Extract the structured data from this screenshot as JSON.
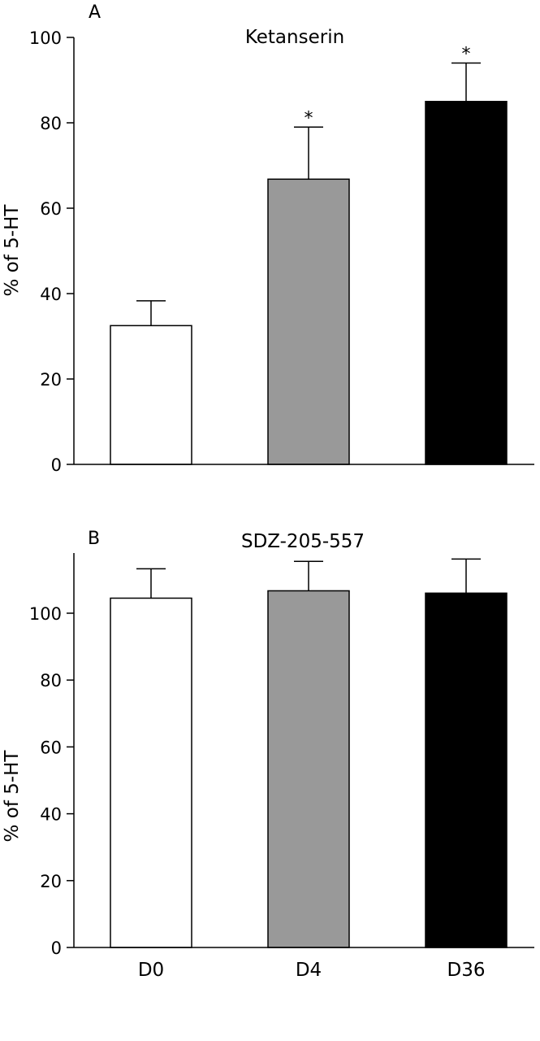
{
  "chart_data": [
    {
      "type": "bar",
      "panel_label": "A",
      "title": "Ketanserin",
      "xlabel": "",
      "ylabel": "% of 5-HT",
      "ylim": [
        0,
        100
      ],
      "yticks": [
        0,
        20,
        40,
        60,
        80,
        100
      ],
      "categories": [
        "D0",
        "D4",
        "D36"
      ],
      "show_category_labels": false,
      "values": [
        32.5,
        66.8,
        85
      ],
      "errors": [
        5.8,
        12.2,
        9
      ],
      "significance": [
        "",
        "*",
        "*"
      ],
      "colors": [
        "#ffffff",
        "#999999",
        "#000000"
      ],
      "grid": false
    },
    {
      "type": "bar",
      "panel_label": "B",
      "title": "SDZ-205-557",
      "xlabel": "",
      "ylabel": "% of 5-HT",
      "ylim": [
        0,
        118
      ],
      "yticks": [
        0,
        20,
        40,
        60,
        80,
        100
      ],
      "categories": [
        "D0",
        "D4",
        "D36"
      ],
      "show_category_labels": true,
      "values": [
        104.5,
        106.7,
        106
      ],
      "errors": [
        8.8,
        8.8,
        10.2
      ],
      "significance": [
        "",
        "",
        ""
      ],
      "colors": [
        "#ffffff",
        "#999999",
        "#000000"
      ],
      "grid": false
    }
  ]
}
